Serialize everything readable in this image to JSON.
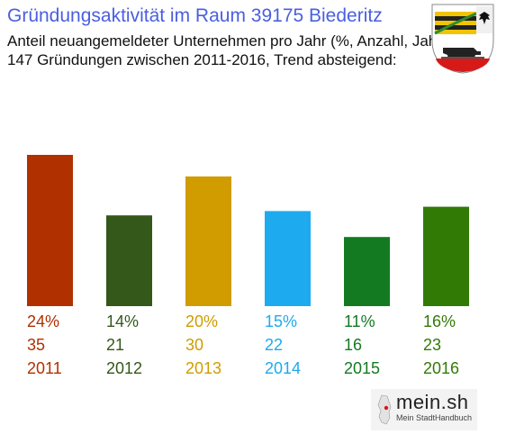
{
  "header": {
    "title": "Gründungsaktivität im Raum 39175 Biederitz",
    "subtitle_line1": "Anteil neuangemeldeter Unternehmen pro Jahr (%, Anzahl, Jahr)",
    "subtitle_line2": "147 Gründungen zwischen 2011-2016, Trend absteigend:"
  },
  "logo": {
    "brand": "mein.sh",
    "tagline": "Mein StadtHandbuch"
  },
  "crest_icon": "coat-of-arms-icon",
  "chart_data": {
    "type": "bar",
    "categories": [
      "2011",
      "2012",
      "2013",
      "2014",
      "2015",
      "2016"
    ],
    "percent_labels": [
      "24%",
      "14%",
      "20%",
      "15%",
      "11%",
      "16%"
    ],
    "count_labels": [
      "35",
      "21",
      "30",
      "22",
      "16",
      "23"
    ],
    "values": [
      35,
      21,
      30,
      22,
      16,
      23
    ],
    "colors": [
      "#b03000",
      "#33581a",
      "#d09c00",
      "#1eaaee",
      "#137a22",
      "#327a06"
    ],
    "total": 147
  }
}
